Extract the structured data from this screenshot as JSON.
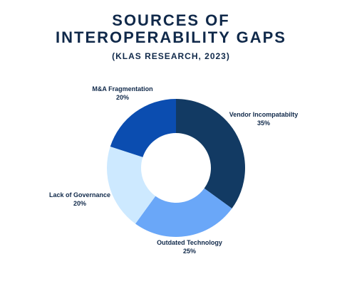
{
  "chart_data": {
    "type": "pie",
    "title_line1": "SOURCES OF",
    "title_line2": "INTEROPERABILITY GAPS",
    "subtitle": "(KLAS RESEARCH, 2023)",
    "donut": true,
    "slices": [
      {
        "label": "Vendor Incompatabilty",
        "value": 35,
        "display": "35%",
        "color": "#123a63"
      },
      {
        "label": "Outdated Technology",
        "value": 25,
        "display": "25%",
        "color": "#6aa7f8"
      },
      {
        "label": "Lack of Governance",
        "value": 20,
        "display": "20%",
        "color": "#cde9ff"
      },
      {
        "label": "M&A Fragmentation",
        "value": 20,
        "display": "20%",
        "color": "#0b4db0"
      }
    ]
  }
}
